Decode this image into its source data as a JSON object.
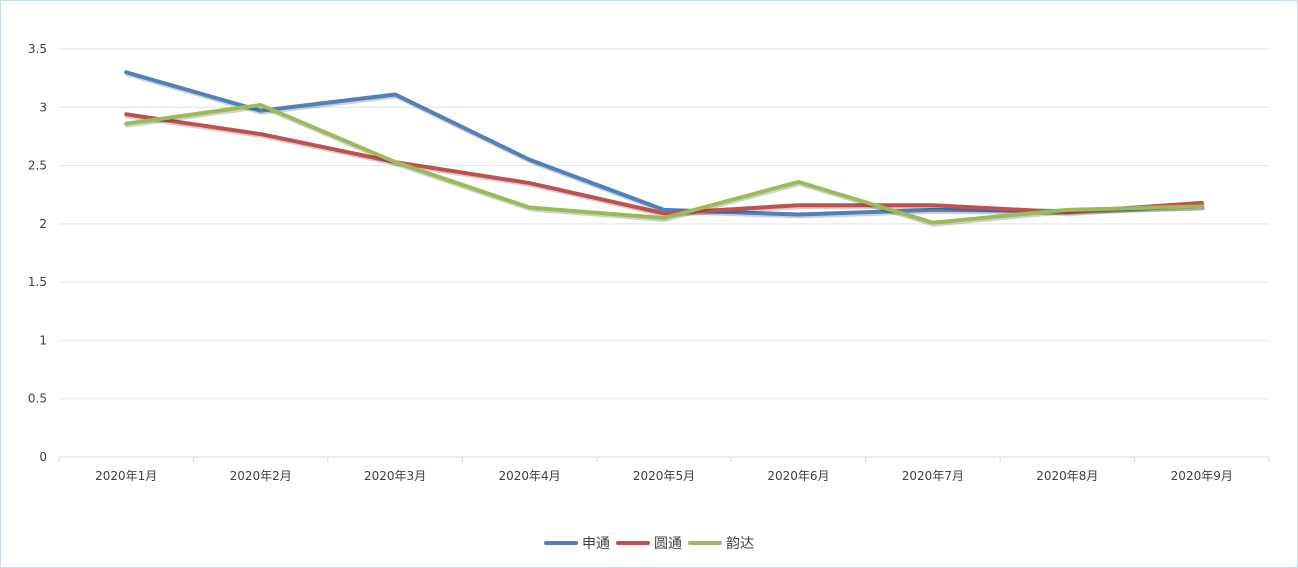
{
  "chart_data": {
    "type": "line",
    "categories": [
      "2020年1月",
      "2020年2月",
      "2020年3月",
      "2020年4月",
      "2020年5月",
      "2020年6月",
      "2020年7月",
      "2020年8月",
      "2020年9月"
    ],
    "ylim": [
      0,
      3.5
    ],
    "yticks": [
      "0",
      "0.5",
      "1",
      "1.5",
      "2",
      "2.5",
      "3",
      "3.5"
    ],
    "grid": true,
    "legend_position": "bottom",
    "series": [
      {
        "name": "申通",
        "color": "#4f81bd",
        "values": [
          3.3,
          2.97,
          3.11,
          2.55,
          2.12,
          2.08,
          2.12,
          2.11,
          2.15
        ]
      },
      {
        "name": "圆通",
        "color": "#c0504d",
        "values": [
          2.94,
          2.77,
          2.53,
          2.35,
          2.09,
          2.16,
          2.16,
          2.1,
          2.18
        ]
      },
      {
        "name": "韵达",
        "color": "#9bbb59",
        "values": [
          2.86,
          3.02,
          2.53,
          2.14,
          2.05,
          2.36,
          2.01,
          2.12,
          2.15
        ]
      }
    ]
  }
}
